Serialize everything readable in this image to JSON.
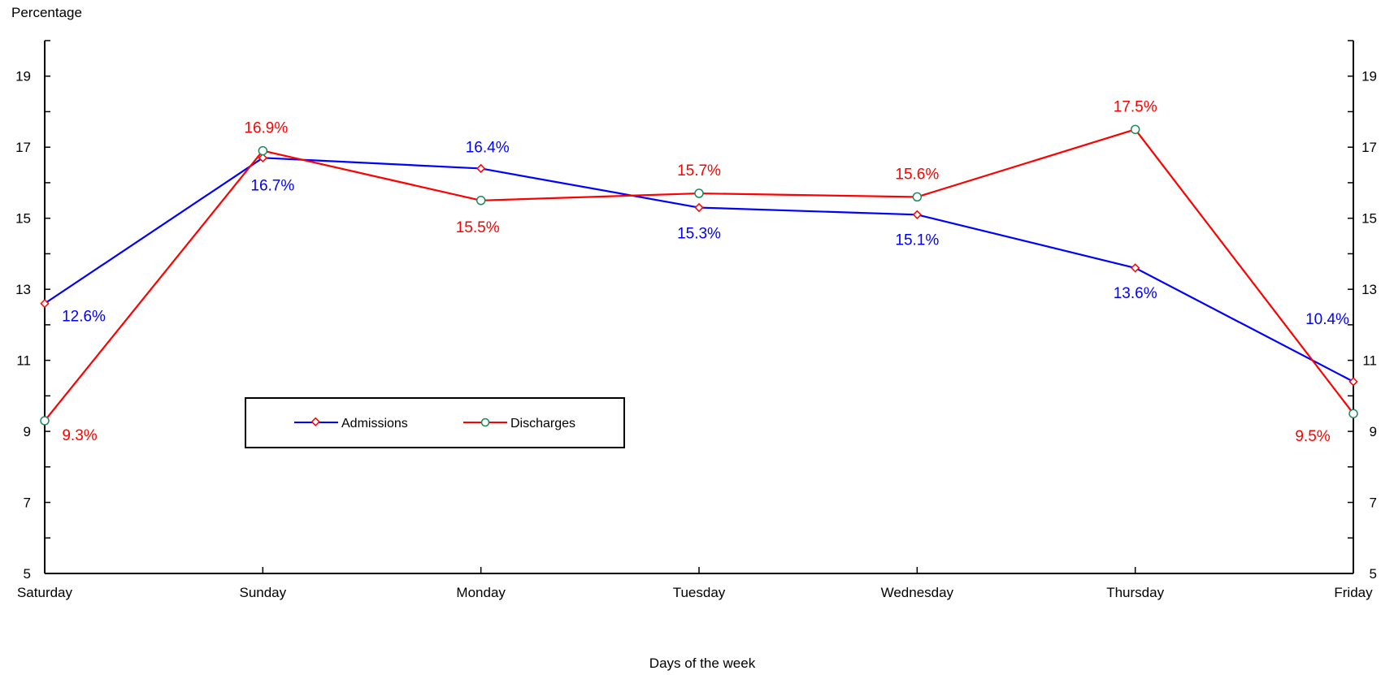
{
  "chart_data": {
    "type": "line",
    "title": "",
    "ylabel": "Percentage",
    "xlabel": "Days of the week",
    "categories": [
      "Saturday",
      "Sunday",
      "Monday",
      "Tuesday",
      "Wednesday",
      "Thursday",
      "Friday"
    ],
    "ylim": [
      5,
      20
    ],
    "yticks": [
      5,
      7,
      9,
      11,
      13,
      15,
      17,
      19
    ],
    "grid": false,
    "legend_position": "center-left",
    "series": [
      {
        "name": "Admissions",
        "color": "#0000ff",
        "marker": "diamond",
        "marker_color": "#ff0000",
        "values": [
          12.6,
          16.7,
          16.4,
          15.3,
          15.1,
          13.6,
          10.4
        ],
        "labels": [
          "12.6%",
          "16.7%",
          "16.4%",
          "15.3%",
          "15.1%",
          "13.6%",
          "10.4%"
        ]
      },
      {
        "name": "Discharges",
        "color": "#ff0000",
        "marker": "circle",
        "marker_color": "#1a8a5a",
        "values": [
          9.3,
          16.9,
          15.5,
          15.7,
          15.6,
          17.5,
          9.5
        ],
        "labels": [
          "9.3%",
          "16.9%",
          "15.5%",
          "15.7%",
          "15.6%",
          "17.5%",
          "9.5%"
        ]
      }
    ]
  }
}
